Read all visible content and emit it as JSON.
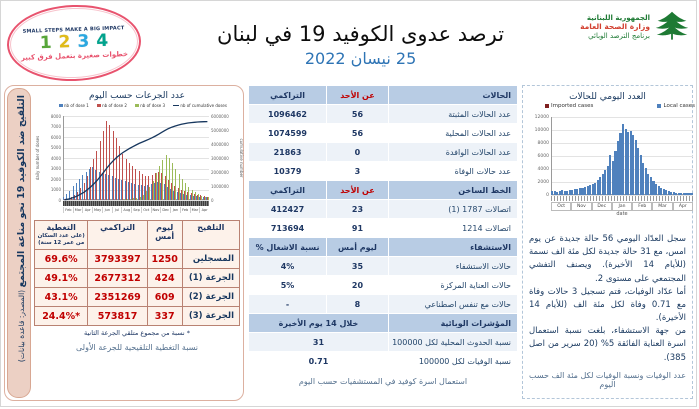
{
  "header": {
    "title": "ترصد عدوى الكوفيد 19 في لبنان",
    "date": "25 نيسان 2022",
    "banner": {
      "tagline_en": "SMALL STEPS MAKE A BIG IMPACT",
      "steps": [
        {
          "num": "1",
          "color": "#57a639"
        },
        {
          "num": "2",
          "color": "#e0bb1b"
        },
        {
          "num": "3",
          "color": "#2ba8e0"
        },
        {
          "num": "4",
          "color": "#00a38d"
        }
      ],
      "tagline_ar": "خطوات صغيرة بتعمل فرق كبير",
      "ring_color": "#e8536e"
    },
    "logo": {
      "line1": "الجمهورية اللبنانية",
      "line2": "وزارة الصحة العامة",
      "line3": "برنامج الترصد الوبائي"
    }
  },
  "left_panel": {
    "sidebar_title": "التلقيح ضد الكوفيد 19 نحو مناعة المجتمع",
    "sidebar_source": " (المصدر: قاعدة بيانات)",
    "chart_title": "عدد الجرعات حسب اليوم",
    "vax_table": {
      "col_vaccination": "التلقيح",
      "col_yesterday": "ليوم أمس",
      "col_cumulative": "التراكمي",
      "col_coverage": "التغطية",
      "col_coverage_sub": "(على عدد السكان من عمر 12 سنة)",
      "rows": [
        {
          "label": "المسجلين",
          "yesterday": "1250",
          "cumulative": "3793397",
          "coverage": "69.6%"
        },
        {
          "label": "الجرعة (1)",
          "yesterday": "424",
          "cumulative": "2677312",
          "coverage": "49.1%"
        },
        {
          "label": "الجرعة (2)",
          "yesterday": "609",
          "cumulative": "2351269",
          "coverage": "43.1%"
        },
        {
          "label": "الجرعة (3)",
          "yesterday": "337",
          "cumulative": "573817",
          "coverage": "24.4%*"
        }
      ],
      "footnote": "* نسبة من مجموع متلقي الجرعة الثانية"
    },
    "caption": "نسبة التغطية التلقيحية للجرعة الأولى"
  },
  "cases_table": {
    "sections": [
      {
        "header": [
          "الحالات",
          "عن الأحد",
          "التراكمي"
        ],
        "red_col": 1,
        "rows": [
          [
            "عدد الحالات المثبتة",
            "56",
            "1096462"
          ],
          [
            "عدد الحالات المحلية",
            "56",
            "1074599"
          ],
          [
            "عدد الحالات الوافدة",
            "0",
            "21863"
          ],
          [
            "عدد حالات الوفاة",
            "3",
            "10379"
          ]
        ]
      },
      {
        "header": [
          "الخط الساخن",
          "عن الأحد",
          "التراكمي"
        ],
        "red_col": 1,
        "rows": [
          [
            "اتصالات 1787 (1)",
            "23",
            "412427"
          ],
          [
            "اتصالات 1214",
            "91",
            "713694"
          ]
        ]
      },
      {
        "header": [
          "الاستشفاء",
          "ليوم أمس",
          "نسبة الاشغال %"
        ],
        "rows": [
          [
            "حالات الاستشفاء",
            "35",
            "4%"
          ],
          [
            "حالات العناية المركزة",
            "20",
            "5%"
          ],
          [
            "حالات مع تنفس اصطناعي",
            "8",
            "-"
          ]
        ]
      },
      {
        "header": [
          "المؤشرات الوبائية",
          "خلال 14 يوم الأخيرة"
        ],
        "merge": true,
        "rows": [
          [
            "نسبة الحدوث المحلية لكل 100000",
            "31"
          ],
          [
            "نسبة الوفيات لكل 100000",
            "0.71"
          ]
        ]
      }
    ]
  },
  "mid_caption": "استعمال اسرة كوفيد في المستشفيات حسب اليوم",
  "right_panel": {
    "chart_title": "العدد اليومي للحالات",
    "summary": "سجل العدّاد اليومي 56 حالة جديدة عن يوم امس، مع 31 حالة جديدة لكل مئة الف نسمة (للأيام 14 الأخيرة). ويصنف التفشي المجتمعي على مستوى 2.\nأما عدّاد الوفيات، فتم تسجيل 3 حالات وفاة مع 0.71 وفاة لكل مئة الف (للأيام 14 الأخيرة).\nمن جهة الاستشفاء، بلغت نسبة استعمال اسرة العناية الفائقة 5% (20 سرير من اصل 385).",
    "caption": "عدد الوفيات ونسبة الوفيات لكل مئة الف حسب اليوم"
  },
  "chart_data": [
    {
      "id": "dose_chart",
      "type": "bar",
      "title": "عدد الجرعات حسب اليوم",
      "legend": [
        "nb of dose 1",
        "nb of dose 2",
        "nb of dose 3",
        "nb of cumulative doses"
      ],
      "legend_colors": [
        "#4f81bd",
        "#c0504d",
        "#9bbb59",
        "#17375e"
      ],
      "x_months": [
        "Feb",
        "Mar",
        "Apr",
        "May",
        "Jun",
        "Jul",
        "Aug",
        "Sep",
        "Oct",
        "Nov",
        "Dec",
        "Jan",
        "Feb",
        "Mar",
        "Apr"
      ],
      "ylabel_left": "daily number of doses",
      "ylabel_right": "cumulative number",
      "ylim_left": [
        0,
        8000
      ],
      "yticks_left": [
        0,
        1000,
        2000,
        3000,
        4000,
        5000,
        6000,
        7000,
        8000
      ],
      "ylim_right": [
        0,
        6000000
      ],
      "yticks_right": [
        0,
        1000000,
        2000000,
        3000000,
        4000000,
        5000000,
        6000000
      ],
      "grid": true,
      "legend_position": "top",
      "series": [
        {
          "name": "nb of dose 1",
          "color": "#4f81bd",
          "values": [
            300,
            600,
            900,
            1300,
            1600,
            2000,
            2400,
            2700,
            3000,
            3100,
            2900,
            2700,
            2600,
            2500,
            2400,
            2300,
            2100,
            2000,
            1900,
            1800,
            1700,
            1600,
            1500,
            1450,
            1400,
            1380,
            1420,
            1500,
            1650,
            1750,
            1650,
            1500,
            1280,
            1050,
            880,
            760,
            650,
            560,
            480,
            430,
            380,
            340,
            300,
            270,
            240
          ]
        },
        {
          "name": "nb of dose 2",
          "color": "#c0504d",
          "values": [
            60,
            120,
            250,
            450,
            750,
            1100,
            1600,
            2300,
            3100,
            3900,
            4700,
            5600,
            6600,
            7500,
            7100,
            6600,
            5900,
            5100,
            4400,
            3900,
            3500,
            3200,
            3000,
            2750,
            2500,
            2300,
            2250,
            2350,
            2550,
            2700,
            2550,
            2300,
            1950,
            1650,
            1380,
            1180,
            1000,
            880,
            760,
            660,
            570,
            490,
            430,
            380,
            330
          ]
        },
        {
          "name": "nb of dose 3",
          "color": "#9bbb59",
          "values": [
            0,
            0,
            0,
            0,
            0,
            0,
            0,
            0,
            0,
            0,
            0,
            0,
            0,
            0,
            0,
            0,
            0,
            0,
            60,
            90,
            120,
            160,
            220,
            320,
            520,
            820,
            1250,
            1850,
            2550,
            3250,
            3850,
            4250,
            4000,
            3500,
            2950,
            2450,
            1980,
            1580,
            1230,
            950,
            720,
            540,
            420,
            320,
            260
          ]
        },
        {
          "name": "nb of cumulative doses",
          "type": "line",
          "color": "#17375e",
          "axis": "right",
          "values": [
            20000,
            60000,
            120000,
            200000,
            300000,
            420000,
            560000,
            730000,
            930000,
            1150000,
            1400000,
            1680000,
            1980000,
            2280000,
            2560000,
            2810000,
            3030000,
            3220000,
            3390000,
            3540000,
            3680000,
            3810000,
            3930000,
            4040000,
            4140000,
            4240000,
            4340000,
            4450000,
            4570000,
            4700000,
            4840000,
            4980000,
            5100000,
            5200000,
            5280000,
            5350000,
            5410000,
            5460000,
            5500000,
            5530000,
            5550000,
            5570000,
            5585000,
            5595000,
            5600000
          ]
        }
      ]
    },
    {
      "id": "daily_cases_chart",
      "type": "bar",
      "title": "العدد اليومي للحالات",
      "legend": [
        "Imported cases",
        "Local cases"
      ],
      "legend_colors": [
        "#7f2020",
        "#4f81bd"
      ],
      "x_months": [
        "Oct",
        "Nov",
        "Dec",
        "Jan",
        "Feb",
        "Mar",
        "Apr"
      ],
      "xlabel": "date",
      "ylim": [
        0,
        12000
      ],
      "yticks": [
        0,
        2000,
        4000,
        6000,
        8000,
        10000,
        12000
      ],
      "grid": true,
      "legend_position": "top",
      "series": [
        {
          "name": "Local cases",
          "color": "#4f81bd",
          "values": [
            550,
            600,
            520,
            650,
            700,
            620,
            680,
            750,
            800,
            850,
            950,
            1050,
            1150,
            1250,
            1400,
            1550,
            1700,
            1900,
            2300,
            2800,
            3300,
            3900,
            4400,
            6100,
            5200,
            6800,
            8300,
            9600,
            11000,
            10200,
            9700,
            9900,
            9200,
            8400,
            7300,
            6100,
            5000,
            4100,
            3300,
            2700,
            2100,
            1700,
            1350,
            1050,
            850,
            700,
            580,
            500,
            430,
            380,
            340,
            310,
            290,
            270,
            260,
            250
          ]
        },
        {
          "name": "Imported cases",
          "color": "#7f2020",
          "values_approx": "near-zero"
        }
      ]
    }
  ]
}
